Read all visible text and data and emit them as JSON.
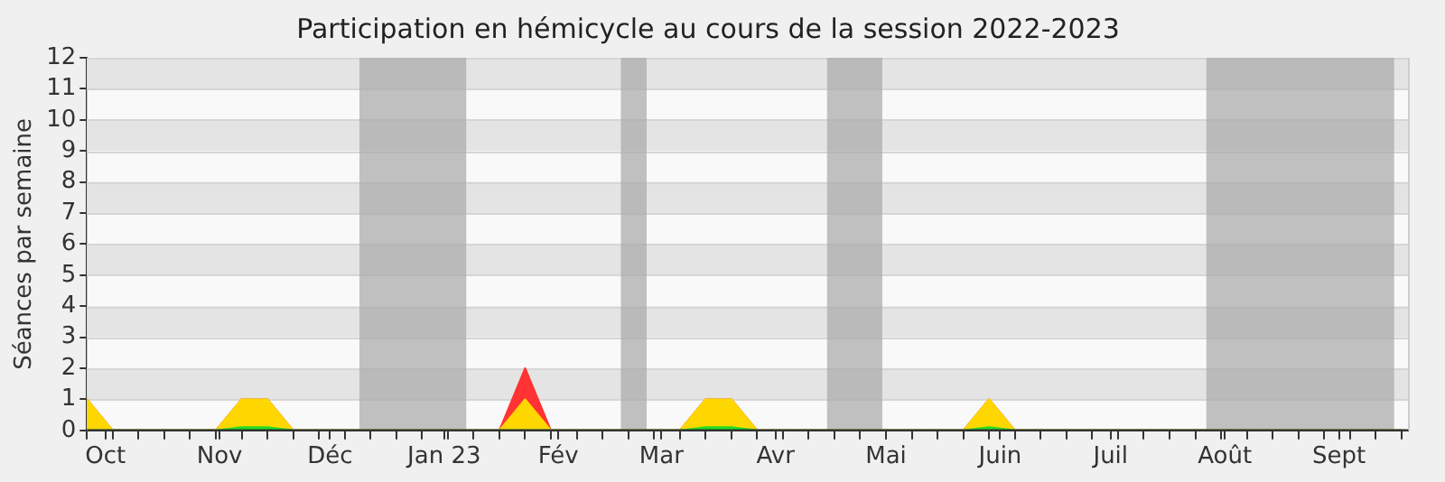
{
  "chart_data": {
    "type": "area",
    "title": "Participation en hémicycle au cours de la session 2022-2023",
    "ylabel": "Séances par semaine",
    "stacked": true,
    "grid": "y",
    "legend": false,
    "x": [
      "2022-09-26",
      "2022-10-03",
      "2022-10-10",
      "2022-10-17",
      "2022-10-24",
      "2022-10-31",
      "2022-11-07",
      "2022-11-14",
      "2022-11-21",
      "2022-11-28",
      "2022-12-05",
      "2022-12-12",
      "2022-12-19",
      "2022-12-26",
      "2023-01-02",
      "2023-01-09",
      "2023-01-16",
      "2023-01-23",
      "2023-01-30",
      "2023-02-06",
      "2023-02-13",
      "2023-02-20",
      "2023-02-27",
      "2023-03-06",
      "2023-03-13",
      "2023-03-20",
      "2023-03-27",
      "2023-04-03",
      "2023-04-10",
      "2023-04-17",
      "2023-04-24",
      "2023-05-01",
      "2023-05-08",
      "2023-05-15",
      "2023-05-22",
      "2023-05-29",
      "2023-06-05",
      "2023-06-12",
      "2023-06-19",
      "2023-06-26",
      "2023-07-03",
      "2023-07-10",
      "2023-07-17",
      "2023-07-24",
      "2023-07-31",
      "2023-08-07",
      "2023-08-14",
      "2023-08-21",
      "2023-08-28",
      "2023-09-04",
      "2023-09-11",
      "2023-09-18"
    ],
    "series": [
      {
        "color": "#22dd22",
        "values": [
          0,
          0,
          0,
          0,
          0,
          0,
          0.1,
          0.1,
          0,
          0,
          0,
          0,
          0,
          0,
          0,
          0,
          0,
          0,
          0,
          0,
          0,
          0,
          0,
          0,
          0.1,
          0.1,
          0,
          0,
          0,
          0,
          0,
          0,
          0,
          0,
          0,
          0.1,
          0,
          0,
          0,
          0,
          0,
          0,
          0,
          0,
          0,
          0,
          0,
          0,
          0,
          0,
          0,
          0
        ]
      },
      {
        "color": "#ffd700",
        "values": [
          1,
          0,
          0,
          0,
          0,
          0,
          0.9,
          0.9,
          0,
          0,
          0,
          0,
          0,
          0,
          0,
          0,
          0,
          1,
          0,
          0,
          0,
          0,
          0,
          0,
          0.9,
          0.9,
          0,
          0,
          0,
          0,
          0,
          0,
          0,
          0,
          0,
          0.9,
          0,
          0,
          0,
          0,
          0,
          0,
          0,
          0,
          0,
          0,
          0,
          0,
          0,
          0,
          0,
          0
        ]
      },
      {
        "color": "#ff3333",
        "values": [
          0,
          0,
          0,
          0,
          0,
          0,
          0,
          0,
          0,
          0,
          0,
          0,
          0,
          0,
          0,
          0,
          0,
          1,
          0,
          0,
          0,
          0,
          0,
          0,
          0,
          0,
          0,
          0,
          0,
          0,
          0,
          0,
          0,
          0,
          0,
          0,
          0,
          0,
          0,
          0,
          0,
          0,
          0,
          0,
          0,
          0,
          0,
          0,
          0,
          0,
          0,
          0
        ]
      }
    ],
    "xlim": [
      "2022-09-26",
      "2023-09-20"
    ],
    "xticks": [
      {
        "value": "2022-10-01",
        "label": "Oct"
      },
      {
        "value": "2022-11-01",
        "label": "Nov"
      },
      {
        "value": "2022-12-01",
        "label": "Déc"
      },
      {
        "value": "2023-01-01",
        "label": "Jan 23"
      },
      {
        "value": "2023-02-01",
        "label": "Fév"
      },
      {
        "value": "2023-03-01",
        "label": "Mar"
      },
      {
        "value": "2023-04-01",
        "label": "Avr"
      },
      {
        "value": "2023-05-01",
        "label": "Mai"
      },
      {
        "value": "2023-06-01",
        "label": "Juin"
      },
      {
        "value": "2023-07-01",
        "label": "Juil"
      },
      {
        "value": "2023-08-01",
        "label": "Août"
      },
      {
        "value": "2023-09-01",
        "label": "Sept"
      }
    ],
    "ylim": [
      0,
      12
    ],
    "yticks": [
      0,
      1,
      2,
      3,
      4,
      5,
      6,
      7,
      8,
      9,
      10,
      11,
      12
    ],
    "bands": [
      {
        "axis": "x",
        "from": "2022-12-09",
        "to": "2023-01-07",
        "color": "#a8a8a8"
      },
      {
        "axis": "x",
        "from": "2023-02-18",
        "to": "2023-02-25",
        "color": "#a8a8a8"
      },
      {
        "axis": "x",
        "from": "2023-04-15",
        "to": "2023-04-30",
        "color": "#a8a8a8"
      },
      {
        "axis": "x",
        "from": "2023-07-27",
        "to": "2023-09-16",
        "color": "#a8a8a8"
      }
    ]
  }
}
